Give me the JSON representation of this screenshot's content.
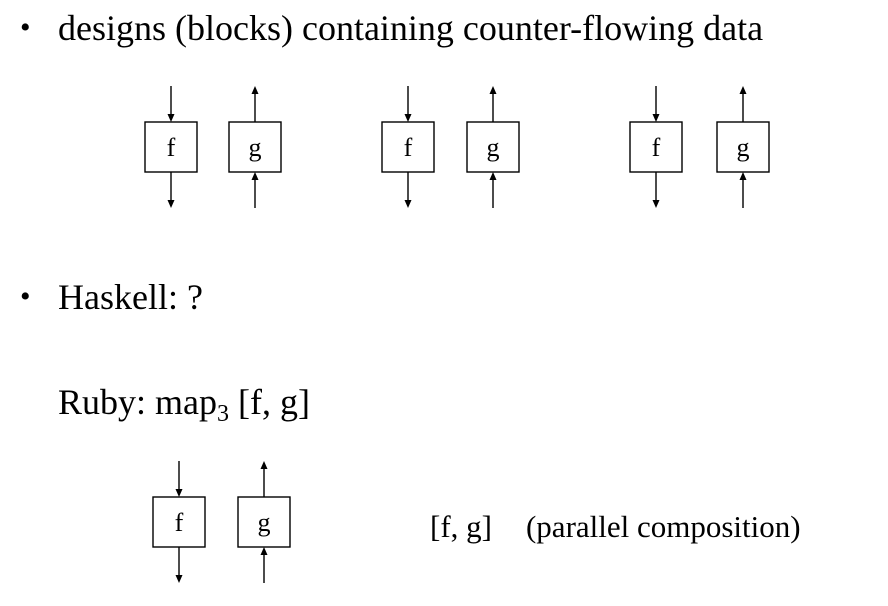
{
  "bullets": {
    "first": "designs (blocks) containing counter-flowing data",
    "second": "Haskell: ?",
    "symbol": "•"
  },
  "ruby": {
    "prefix": "Ruby: map",
    "subscript": "3",
    "suffix": " [f, g]"
  },
  "caption": {
    "expr": "[f, g]",
    "note": "(parallel composition)"
  },
  "blocks": {
    "f_label": "f",
    "g_label": "g",
    "f_flow": "down",
    "g_flow": "up",
    "top_row_pairs": 3,
    "bottom_row_pairs": 1
  }
}
